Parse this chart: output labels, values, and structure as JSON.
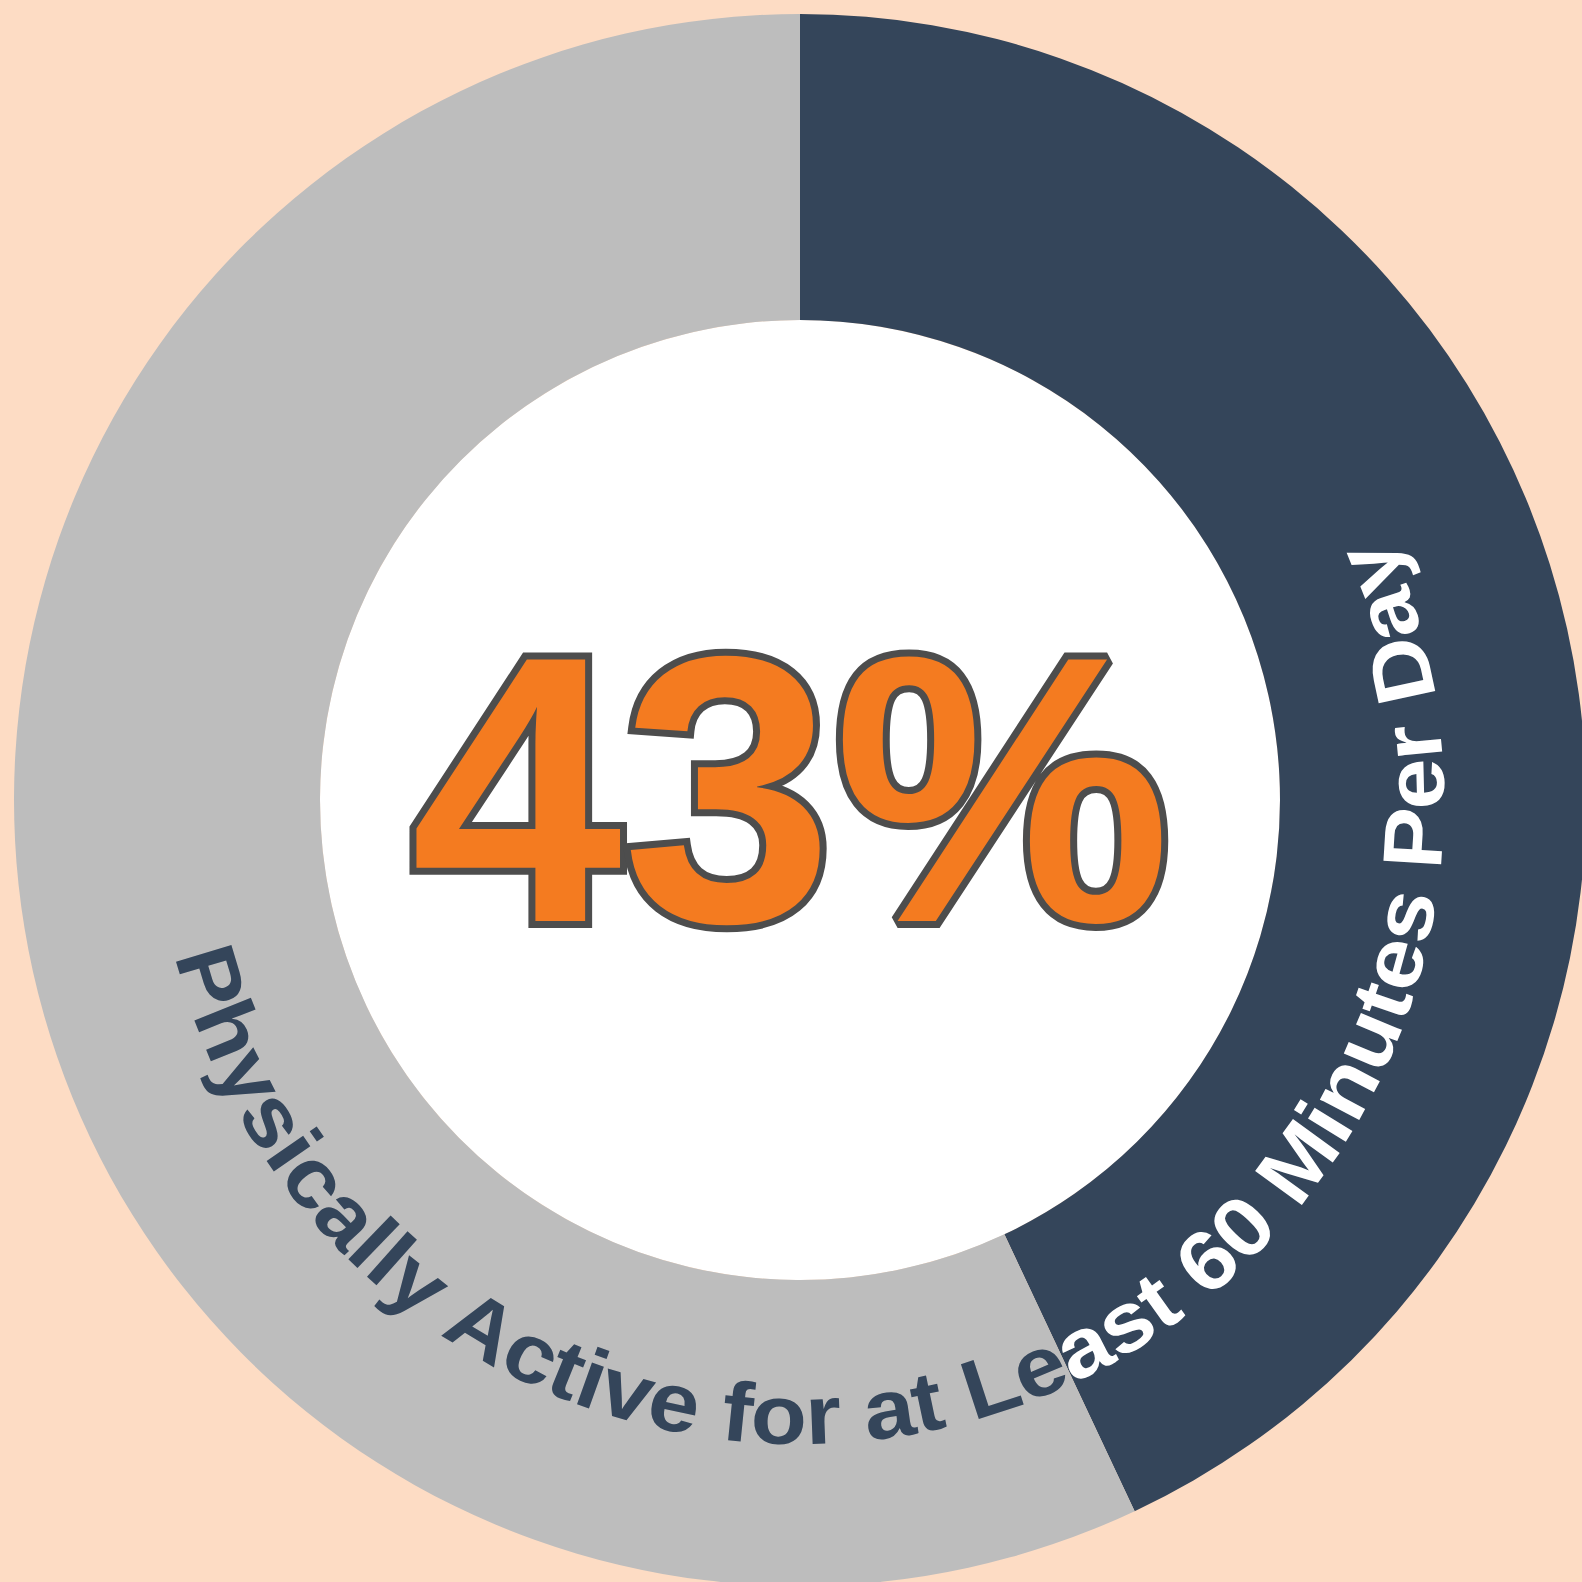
{
  "chart_data": {
    "type": "donut",
    "title": "Physically Active for at Least 60 Minutes Per Day",
    "categories": [
      null,
      null
    ],
    "values": [
      43,
      57
    ],
    "colors": [
      "#34455a",
      "#bdbdbd"
    ],
    "annotations": [
      "43%"
    ]
  }
}
